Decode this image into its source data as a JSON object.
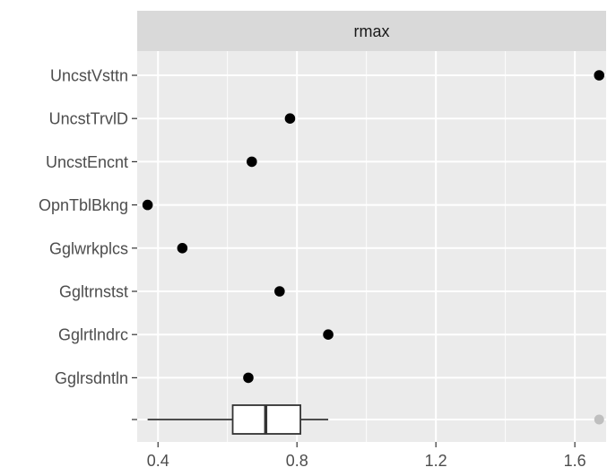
{
  "chart_data": {
    "type": "scatter",
    "facet_label": "rmax",
    "title": "",
    "xlabel": "",
    "ylabel": "",
    "xlim": [
      0.34,
      1.69
    ],
    "x_ticks": [
      0.4,
      0.8,
      1.2,
      1.6
    ],
    "x_tick_labels": [
      "0.4",
      "0.8",
      "1.2",
      "1.6"
    ],
    "grid": true,
    "categories": [
      "UncstVsttn",
      "UncstTrvlD",
      "UncstEncnt",
      "OpnTblBkng",
      "Gglwrkplcs",
      "Ggltrnstst",
      "Gglrtlndrc",
      "Gglrsdntln"
    ],
    "values": [
      1.67,
      0.78,
      0.67,
      0.37,
      0.47,
      0.75,
      0.89,
      0.66
    ],
    "boxplot": {
      "whisker_low": 0.37,
      "q1": 0.615,
      "median": 0.71,
      "q3": 0.81,
      "whisker_high": 0.89,
      "outliers": [
        1.67
      ]
    },
    "colors": {
      "panel": "#ebebeb",
      "strip": "#d9d9d9",
      "grid": "#ffffff",
      "point": "#000000",
      "outlier": "#bfbfbf",
      "box_line": "#333333"
    }
  }
}
